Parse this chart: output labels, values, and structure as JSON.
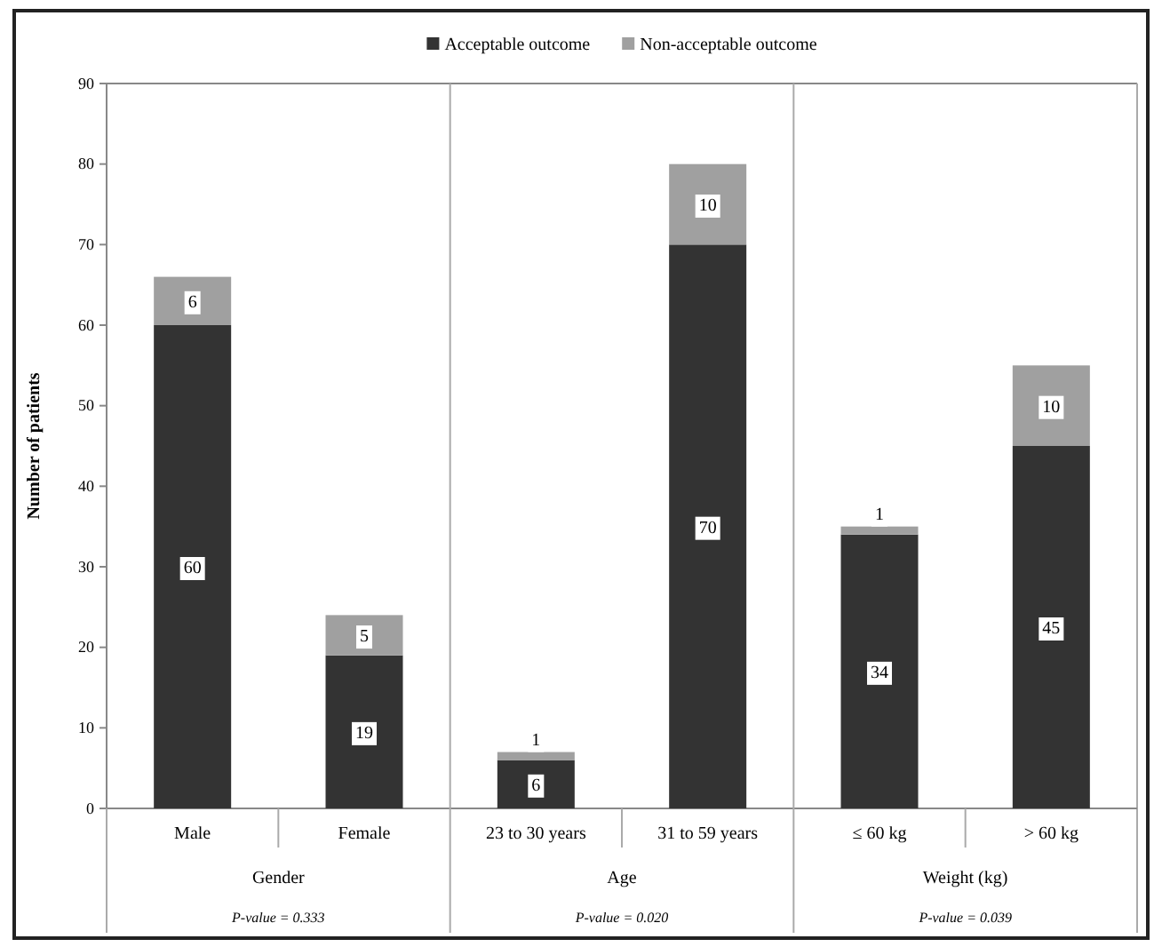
{
  "chart_data": {
    "type": "bar",
    "stacked": true,
    "ylabel": "Number of patients",
    "categories": [
      "Male",
      "Female",
      "23 to 30 years",
      "31 to 59 years",
      "≤ 60 kg",
      "> 60 kg"
    ],
    "series": [
      {
        "name": "Acceptable outcome",
        "color": "#333333",
        "values": [
          60,
          19,
          6,
          70,
          34,
          45
        ]
      },
      {
        "name": "Non-acceptable outcome",
        "color": "#a0a0a0",
        "values": [
          6,
          5,
          1,
          10,
          1,
          10
        ]
      }
    ],
    "ylim": [
      0,
      90
    ],
    "yticks": [
      0,
      10,
      20,
      30,
      40,
      50,
      60,
      70,
      80,
      90
    ],
    "data_labels": true,
    "legend": "top",
    "grid": false,
    "annotations": [
      "Gender",
      "Age",
      "Weight (kg)",
      "P-value = 0.333",
      "P-value = 0.020",
      "P-value = 0.039"
    ]
  }
}
